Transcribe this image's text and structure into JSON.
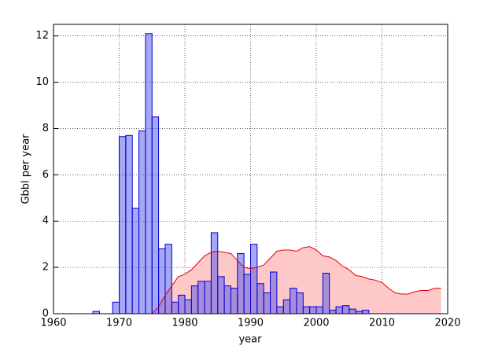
{
  "chart_data": {
    "type": "histogram-area",
    "xlabel": "year",
    "ylabel": "Gbbl per year",
    "xlim": [
      1960,
      2020
    ],
    "ylim": [
      0,
      12.5
    ],
    "xticks": [
      1960,
      1970,
      1980,
      1990,
      2000,
      2010,
      2020
    ],
    "yticks": [
      0,
      2,
      4,
      6,
      8,
      10,
      12
    ],
    "grid": true,
    "series": [
      {
        "type": "area",
        "color": "#e00000",
        "fill": "#ffc8c8",
        "x": [
          1975,
          1976,
          1977,
          1978,
          1979,
          1980,
          1981,
          1982,
          1983,
          1984,
          1985,
          1986,
          1987,
          1988,
          1989,
          1990,
          1991,
          1992,
          1993,
          1994,
          1995,
          1996,
          1997,
          1998,
          1999,
          2000,
          2001,
          2002,
          2003,
          2004,
          2005,
          2006,
          2007,
          2008,
          2009,
          2010,
          2011,
          2012,
          2013,
          2014,
          2015,
          2016,
          2017,
          2018,
          2019
        ],
        "values": [
          0,
          0.3,
          0.8,
          1.2,
          1.6,
          1.7,
          1.9,
          2.2,
          2.5,
          2.65,
          2.7,
          2.65,
          2.6,
          2.3,
          2.0,
          1.95,
          2.0,
          2.1,
          2.4,
          2.7,
          2.75,
          2.75,
          2.7,
          2.85,
          2.9,
          2.75,
          2.5,
          2.45,
          2.3,
          2.05,
          1.9,
          1.65,
          1.6,
          1.5,
          1.45,
          1.35,
          1.1,
          0.9,
          0.85,
          0.85,
          0.95,
          1.0,
          1.0,
          1.1,
          1.1
        ]
      },
      {
        "type": "histogram",
        "color": "#0000cc",
        "fill": "rgba(80,80,240,0.5)",
        "bins": [
          1964,
          1965,
          1966,
          1967,
          1968,
          1969,
          1970,
          1971,
          1972,
          1973,
          1974,
          1975,
          1976,
          1977,
          1978,
          1979,
          1980,
          1981,
          1982,
          1983,
          1984,
          1985,
          1986,
          1987,
          1988,
          1989,
          1990,
          1991,
          1992,
          1993,
          1994,
          1995,
          1996,
          1997,
          1998,
          1999,
          2000,
          2001,
          2002,
          2003,
          2004,
          2005,
          2006,
          2007,
          2008,
          2009
        ],
        "values": [
          0,
          0,
          0.1,
          0,
          0,
          0.5,
          7.65,
          7.7,
          4.55,
          7.9,
          12.1,
          8.5,
          2.8,
          3.0,
          0.5,
          0.8,
          0.6,
          1.2,
          1.4,
          1.4,
          3.5,
          1.6,
          1.2,
          1.1,
          2.6,
          1.7,
          3.0,
          1.3,
          0.9,
          1.8,
          0.3,
          0.6,
          1.1,
          0.9,
          0.3,
          0.3,
          0.3,
          1.75,
          0.15,
          0.3,
          0.35,
          0.2,
          0.1,
          0.15,
          0
        ]
      }
    ]
  }
}
